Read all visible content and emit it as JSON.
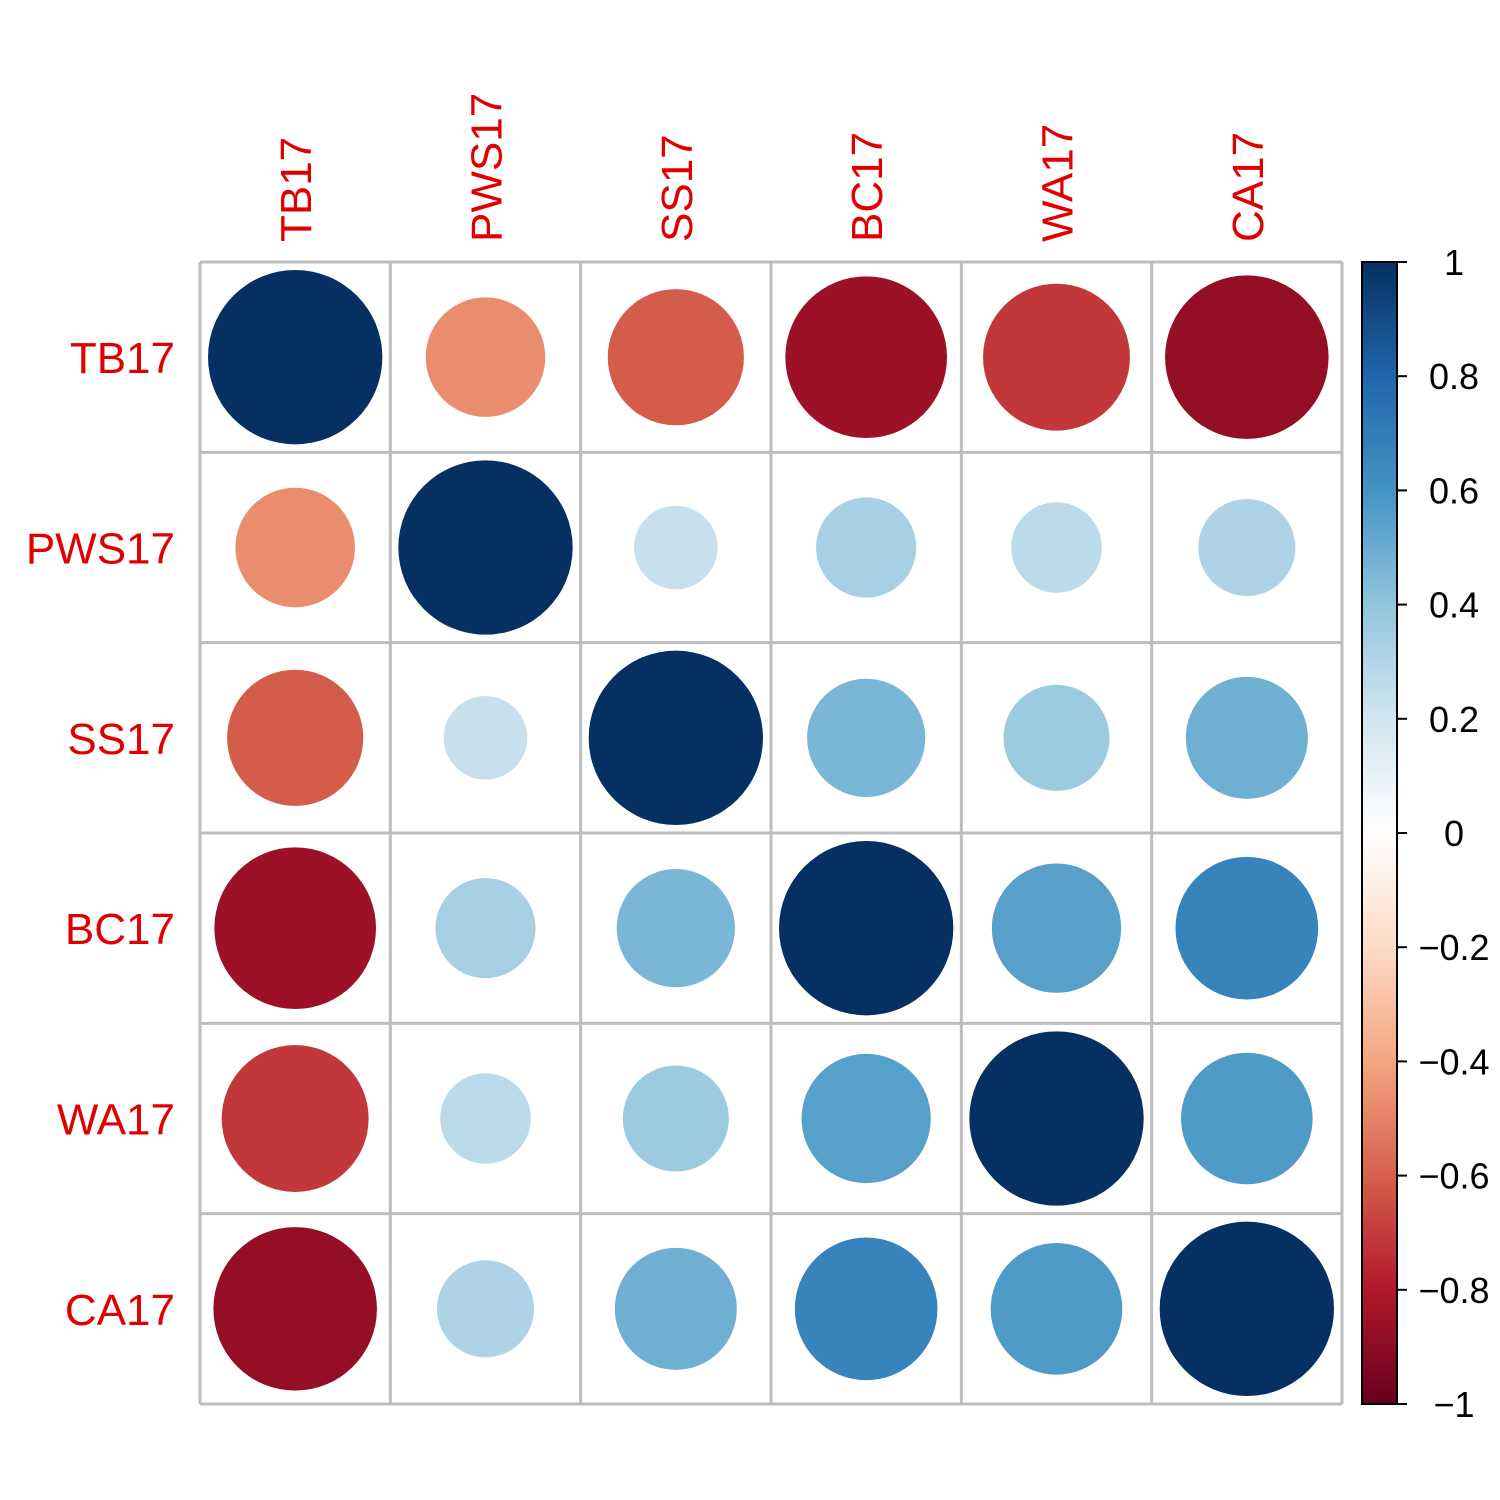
{
  "chart_data": {
    "type": "heatmap",
    "variables": [
      "TB17",
      "PWS17",
      "SS17",
      "BC17",
      "WA17",
      "CA17"
    ],
    "matrix": [
      [
        1.0,
        -0.47,
        -0.61,
        -0.86,
        -0.71,
        -0.88
      ],
      [
        -0.47,
        1.0,
        0.23,
        0.33,
        0.27,
        0.31
      ],
      [
        -0.61,
        0.23,
        1.0,
        0.46,
        0.37,
        0.49
      ],
      [
        -0.86,
        0.33,
        0.46,
        1.0,
        0.55,
        0.67
      ],
      [
        -0.71,
        0.27,
        0.37,
        0.55,
        1.0,
        0.57
      ],
      [
        -0.88,
        0.31,
        0.49,
        0.67,
        0.57,
        1.0
      ]
    ],
    "color_scale": {
      "range": [
        -1,
        1
      ],
      "ticks": [
        1,
        0.8,
        0.6,
        0.4,
        0.2,
        0,
        -0.2,
        -0.4,
        -0.6,
        -0.8,
        -1
      ],
      "tick_labels": [
        "1",
        "0.8",
        "0.6",
        "0.4",
        "0.2",
        "0",
        "−0.2",
        "−0.4",
        "−0.6",
        "−0.8",
        "−1"
      ],
      "colors": [
        "#67001F",
        "#B2182B",
        "#D6604D",
        "#F4A582",
        "#FDDBC7",
        "#FFFFFF",
        "#D1E5F0",
        "#92C5DE",
        "#4393C3",
        "#2166AC",
        "#053061"
      ]
    },
    "label_color": "#e00000",
    "grid_color": "#bdbdbd",
    "glyph": "circle",
    "legend_position": "right"
  }
}
